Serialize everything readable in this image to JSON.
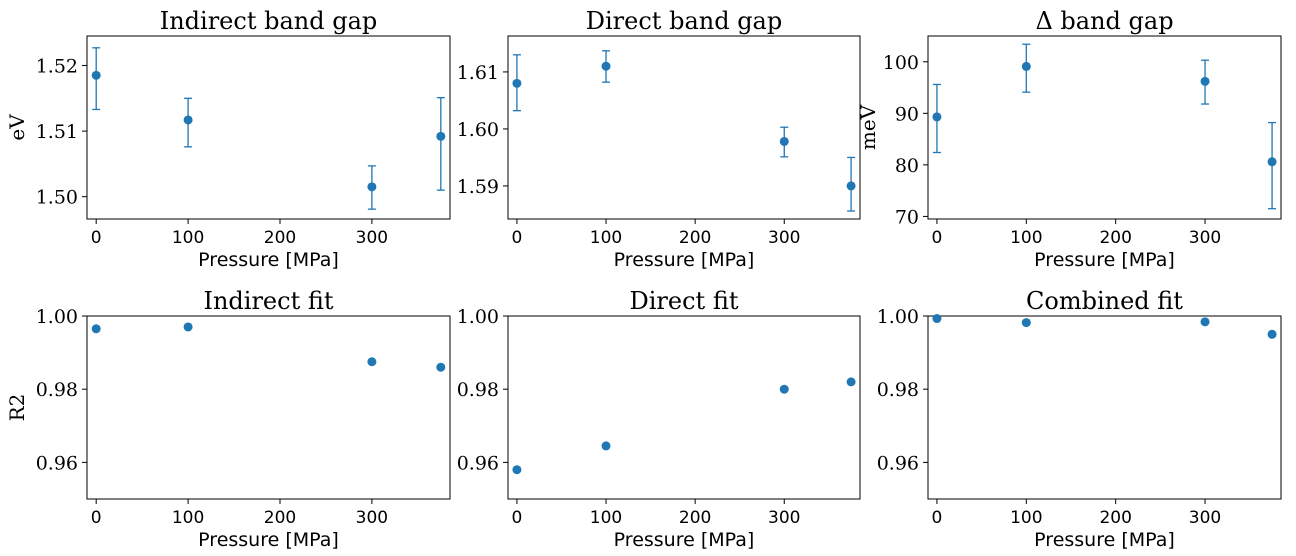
{
  "colors": {
    "marker": "#1f77b4",
    "axes": "#000000",
    "background": "#ffffff"
  },
  "chart_data": [
    {
      "type": "scatter",
      "title": "Indirect band gap",
      "xlabel": "Pressure [MPa]",
      "ylabel": "eV",
      "xlim": [
        -10,
        385
      ],
      "ylim": [
        1.4966,
        1.5245
      ],
      "xticks": [
        0,
        100,
        200,
        300
      ],
      "xtick_labels": [
        "0",
        "100",
        "200",
        "300"
      ],
      "yticks": [
        1.5,
        1.51,
        1.52
      ],
      "ytick_labels": [
        "1.50",
        "1.51",
        "1.52"
      ],
      "error_bars": true,
      "points": [
        {
          "x": 0,
          "y": 1.5185,
          "err_low": 1.5133,
          "err_high": 1.5227
        },
        {
          "x": 100,
          "y": 1.5117,
          "err_low": 1.5076,
          "err_high": 1.515
        },
        {
          "x": 300,
          "y": 1.5015,
          "err_low": 1.4981,
          "err_high": 1.5047
        },
        {
          "x": 375,
          "y": 1.5092,
          "err_low": 1.501,
          "err_high": 1.5151
        }
      ]
    },
    {
      "type": "scatter",
      "title": "Direct band gap",
      "xlabel": "Pressure [MPa]",
      "ylabel": "",
      "xlim": [
        -10,
        385
      ],
      "ylim": [
        1.5842,
        1.6163
      ],
      "xticks": [
        0,
        100,
        200,
        300
      ],
      "xtick_labels": [
        "0",
        "100",
        "200",
        "300"
      ],
      "yticks": [
        1.59,
        1.6,
        1.61
      ],
      "ytick_labels": [
        "1.59",
        "1.60",
        "1.61"
      ],
      "error_bars": true,
      "points": [
        {
          "x": 0,
          "y": 1.608,
          "err_low": 1.6032,
          "err_high": 1.613
        },
        {
          "x": 100,
          "y": 1.611,
          "err_low": 1.6082,
          "err_high": 1.6137
        },
        {
          "x": 300,
          "y": 1.5978,
          "err_low": 1.5951,
          "err_high": 1.6003
        },
        {
          "x": 375,
          "y": 1.59,
          "err_low": 1.5856,
          "err_high": 1.595
        }
      ]
    },
    {
      "type": "scatter",
      "title": "Δ band gap",
      "xlabel": "Pressure [MPa]",
      "ylabel": "meV",
      "xlim": [
        -10,
        385
      ],
      "ylim": [
        69.5,
        105.0
      ],
      "xticks": [
        0,
        100,
        200,
        300
      ],
      "xtick_labels": [
        "0",
        "100",
        "200",
        "300"
      ],
      "yticks": [
        70,
        80,
        90,
        100
      ],
      "ytick_labels": [
        "70",
        "80",
        "90",
        "100"
      ],
      "error_bars": true,
      "points": [
        {
          "x": 0,
          "y": 89.3,
          "err_low": 82.4,
          "err_high": 95.6
        },
        {
          "x": 100,
          "y": 99.1,
          "err_low": 94.1,
          "err_high": 103.4
        },
        {
          "x": 300,
          "y": 96.2,
          "err_low": 91.8,
          "err_high": 100.3
        },
        {
          "x": 375,
          "y": 80.6,
          "err_low": 71.5,
          "err_high": 88.2
        }
      ]
    },
    {
      "type": "scatter",
      "title": "Indirect fit",
      "xlabel": "Pressure [MPa]",
      "ylabel": "R2",
      "xlim": [
        -10,
        385
      ],
      "ylim": [
        0.95,
        1.0
      ],
      "xticks": [
        0,
        100,
        200,
        300
      ],
      "xtick_labels": [
        "0",
        "100",
        "200",
        "300"
      ],
      "yticks": [
        0.96,
        0.98,
        1.0
      ],
      "ytick_labels": [
        "0.96",
        "0.98",
        "1.00"
      ],
      "error_bars": false,
      "points": [
        {
          "x": 0,
          "y": 0.9965
        },
        {
          "x": 100,
          "y": 0.997
        },
        {
          "x": 300,
          "y": 0.9875
        },
        {
          "x": 375,
          "y": 0.986
        }
      ]
    },
    {
      "type": "scatter",
      "title": "Direct fit",
      "xlabel": "Pressure [MPa]",
      "ylabel": "",
      "xlim": [
        -10,
        385
      ],
      "ylim": [
        0.95,
        1.0
      ],
      "xticks": [
        0,
        100,
        200,
        300
      ],
      "xtick_labels": [
        "0",
        "100",
        "200",
        "300"
      ],
      "yticks": [
        0.96,
        0.98,
        1.0
      ],
      "ytick_labels": [
        "0.96",
        "0.98",
        "1.00"
      ],
      "error_bars": false,
      "points": [
        {
          "x": 0,
          "y": 0.958
        },
        {
          "x": 100,
          "y": 0.9645
        },
        {
          "x": 300,
          "y": 0.98
        },
        {
          "x": 375,
          "y": 0.982
        }
      ]
    },
    {
      "type": "scatter",
      "title": "Combined fit",
      "xlabel": "Pressure [MPa]",
      "ylabel": "",
      "xlim": [
        -10,
        385
      ],
      "ylim": [
        0.95,
        1.0
      ],
      "xticks": [
        0,
        100,
        200,
        300
      ],
      "xtick_labels": [
        "0",
        "100",
        "200",
        "300"
      ],
      "yticks": [
        0.96,
        0.98,
        1.0
      ],
      "ytick_labels": [
        "0.96",
        "0.98",
        "1.00"
      ],
      "error_bars": false,
      "points": [
        {
          "x": 0,
          "y": 0.9993
        },
        {
          "x": 100,
          "y": 0.9982
        },
        {
          "x": 300,
          "y": 0.9984
        },
        {
          "x": 375,
          "y": 0.995
        }
      ]
    }
  ]
}
